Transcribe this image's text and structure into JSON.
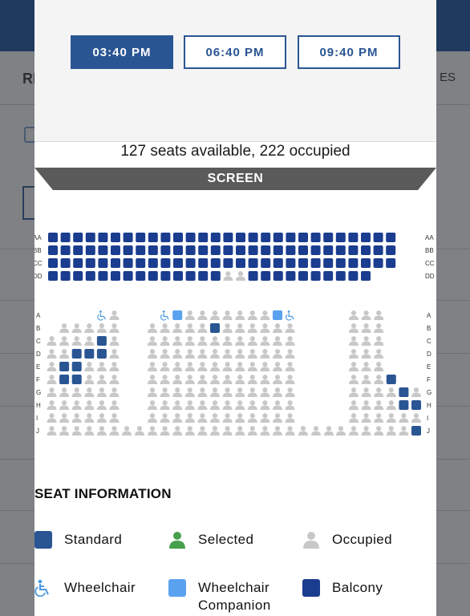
{
  "showtimes": [
    "03:40 PM",
    "06:40 PM",
    "09:40 PM"
  ],
  "selected_showtime": "03:40 PM",
  "availability_text": "127 seats available, 222 occupied",
  "screen_label": "SCREEN",
  "balcony_rows": [
    "AA",
    "BB",
    "CC",
    "DD"
  ],
  "main_rows": [
    "A",
    "B",
    "C",
    "D",
    "E",
    "F",
    "G",
    "H",
    "I",
    "J"
  ],
  "seat_info_title": "SEAT INFORMATION",
  "legend": {
    "standard": "Standard",
    "selected": "Selected",
    "occupied": "Occupied",
    "wheelchair": "Wheelchair",
    "companion": "Wheelchair Companion",
    "balcony": "Balcony"
  },
  "colors": {
    "standard": "#2a5593",
    "selected": "#46a04d",
    "occupied": "#c8c8c8",
    "wheelchair": "#4a9ae0",
    "companion": "#5aa2ef",
    "balcony": "#1b3d8f",
    "screen": "#5a5a5a"
  },
  "background": {
    "left_heading": "RE",
    "right_heading": "ES"
  }
}
